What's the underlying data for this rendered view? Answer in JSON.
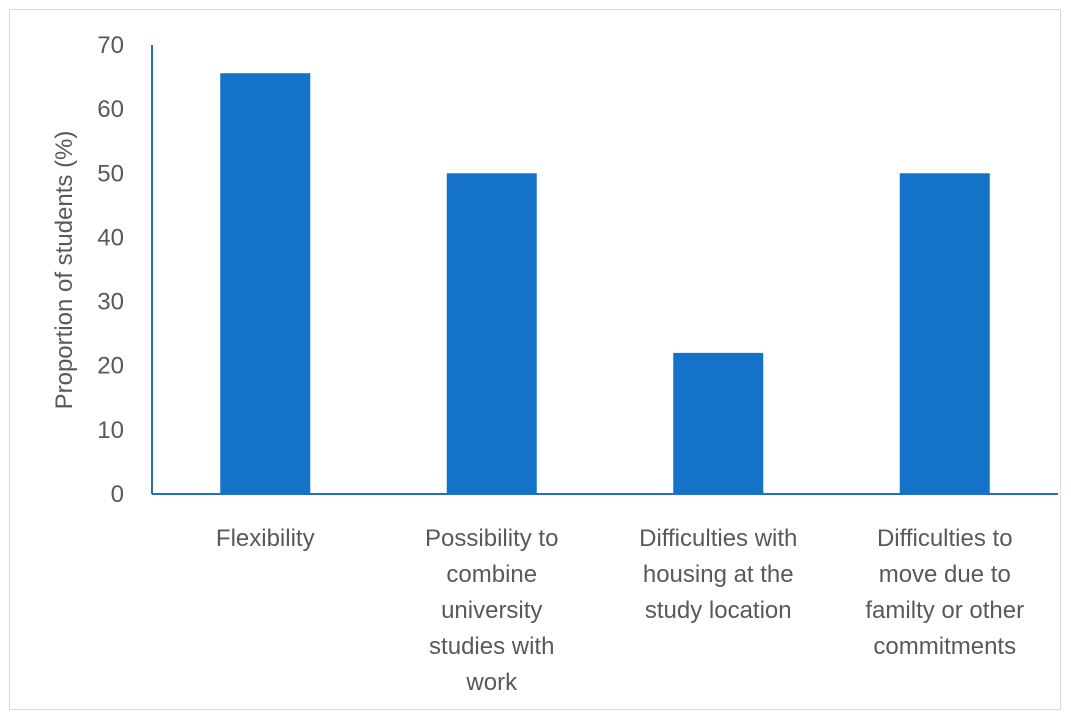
{
  "chart_data": {
    "type": "bar",
    "title": "",
    "xlabel": "",
    "ylabel": "Proportion of students (%)",
    "ylim": [
      0,
      70
    ],
    "yticks": [
      0,
      10,
      20,
      30,
      40,
      50,
      60,
      70
    ],
    "grid": false,
    "categories": [
      [
        "Flexibility"
      ],
      [
        "Possibility to",
        "combine",
        "university",
        "studies with",
        "work"
      ],
      [
        "Difficulties with",
        "housing at the",
        "study location"
      ],
      [
        "Difficulties to",
        "move due to",
        "familty or other",
        "commitments"
      ]
    ],
    "values": [
      65.6,
      50,
      22,
      50
    ],
    "bar_color": "#1572c9",
    "axis_color": "#1f6fc4"
  }
}
